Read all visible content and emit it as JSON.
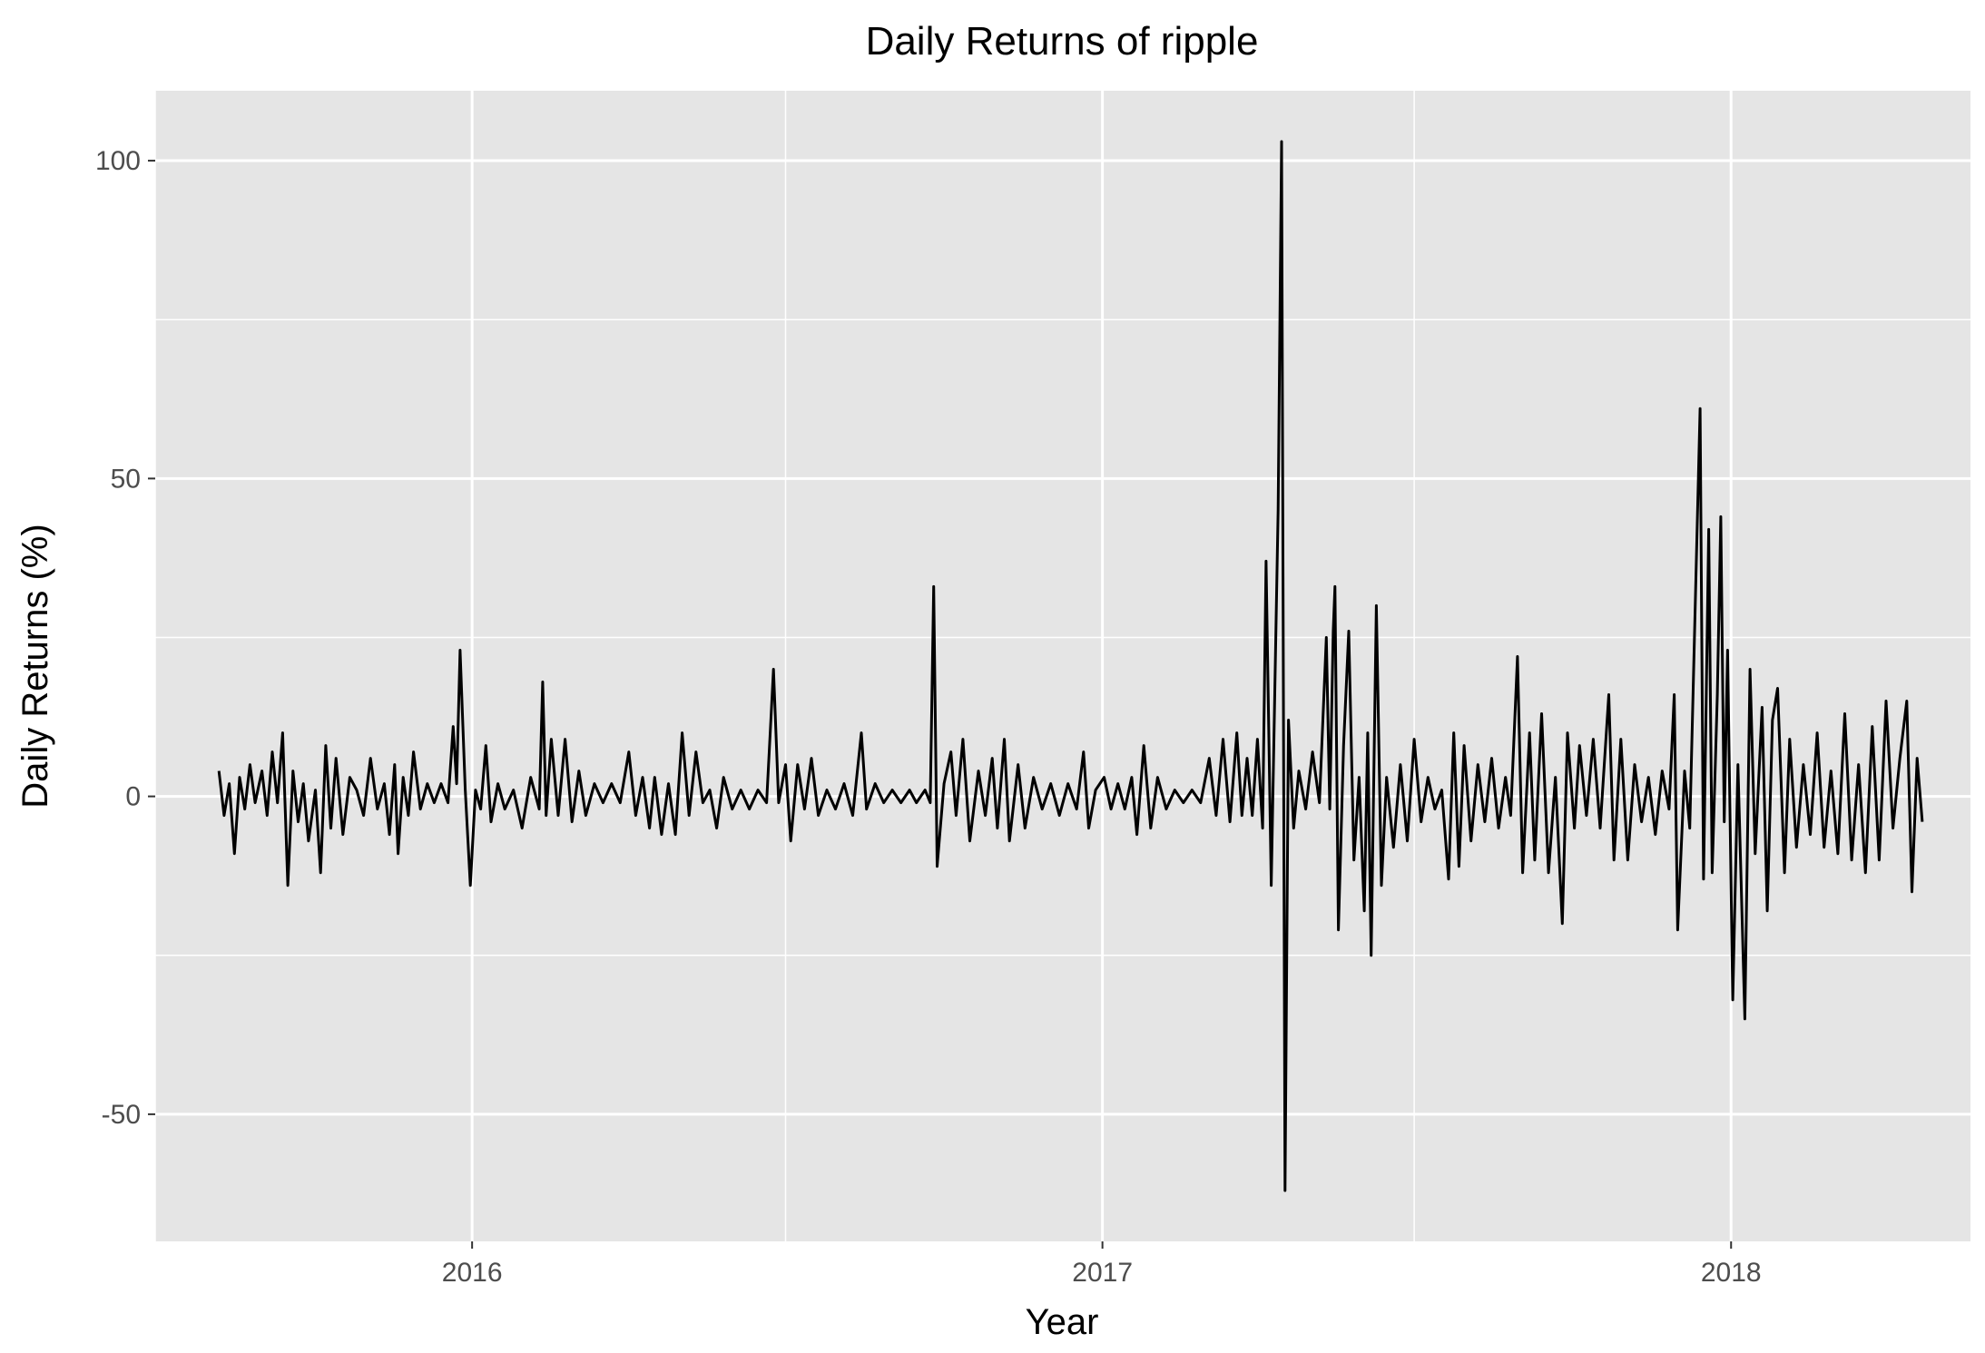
{
  "chart_data": {
    "type": "line",
    "title": "Daily Returns of ripple",
    "xlabel": "Year",
    "ylabel": "Daily Returns (%)",
    "x_ticks": [
      "2016",
      "2017",
      "2018"
    ],
    "y_ticks": [
      -50,
      0,
      50,
      100
    ],
    "ylim": [
      -70,
      111
    ],
    "xlim": [
      "2015-07-01",
      "2018-05-20"
    ],
    "grid": true,
    "background": "#e5e5e5",
    "grid_color": "#ffffff",
    "line_color": "#000000",
    "series": [
      {
        "points": [
          [
            "2015-08-07",
            4
          ],
          [
            "2015-08-10",
            -3
          ],
          [
            "2015-08-13",
            2
          ],
          [
            "2015-08-16",
            -9
          ],
          [
            "2015-08-19",
            3
          ],
          [
            "2015-08-22",
            -2
          ],
          [
            "2015-08-25",
            5
          ],
          [
            "2015-08-28",
            -1
          ],
          [
            "2015-09-01",
            4
          ],
          [
            "2015-09-04",
            -3
          ],
          [
            "2015-09-07",
            7
          ],
          [
            "2015-09-10",
            -1
          ],
          [
            "2015-09-13",
            10
          ],
          [
            "2015-09-16",
            -14
          ],
          [
            "2015-09-19",
            4
          ],
          [
            "2015-09-22",
            -4
          ],
          [
            "2015-09-25",
            2
          ],
          [
            "2015-09-28",
            -7
          ],
          [
            "2015-10-02",
            1
          ],
          [
            "2015-10-05",
            -12
          ],
          [
            "2015-10-08",
            8
          ],
          [
            "2015-10-11",
            -5
          ],
          [
            "2015-10-14",
            6
          ],
          [
            "2015-10-18",
            -6
          ],
          [
            "2015-10-22",
            3
          ],
          [
            "2015-10-26",
            1
          ],
          [
            "2015-10-30",
            -3
          ],
          [
            "2015-11-03",
            6
          ],
          [
            "2015-11-07",
            -2
          ],
          [
            "2015-11-11",
            2
          ],
          [
            "2015-11-14",
            -6
          ],
          [
            "2015-11-17",
            5
          ],
          [
            "2015-11-19",
            -9
          ],
          [
            "2015-11-22",
            3
          ],
          [
            "2015-11-25",
            -3
          ],
          [
            "2015-11-28",
            7
          ],
          [
            "2015-12-02",
            -2
          ],
          [
            "2015-12-06",
            2
          ],
          [
            "2015-12-10",
            -1
          ],
          [
            "2015-12-14",
            2
          ],
          [
            "2015-12-18",
            -1
          ],
          [
            "2015-12-21",
            11
          ],
          [
            "2015-12-23",
            2
          ],
          [
            "2015-12-25",
            23
          ],
          [
            "2015-12-28",
            1
          ],
          [
            "2015-12-31",
            -14
          ],
          [
            "2016-01-03",
            1
          ],
          [
            "2016-01-06",
            -2
          ],
          [
            "2016-01-09",
            8
          ],
          [
            "2016-01-12",
            -4
          ],
          [
            "2016-01-16",
            2
          ],
          [
            "2016-01-20",
            -2
          ],
          [
            "2016-01-25",
            1
          ],
          [
            "2016-01-30",
            -5
          ],
          [
            "2016-02-04",
            3
          ],
          [
            "2016-02-09",
            -2
          ],
          [
            "2016-02-11",
            18
          ],
          [
            "2016-02-13",
            -3
          ],
          [
            "2016-02-16",
            9
          ],
          [
            "2016-02-20",
            -3
          ],
          [
            "2016-02-24",
            9
          ],
          [
            "2016-02-28",
            -4
          ],
          [
            "2016-03-03",
            4
          ],
          [
            "2016-03-07",
            -3
          ],
          [
            "2016-03-12",
            2
          ],
          [
            "2016-03-17",
            -1
          ],
          [
            "2016-03-22",
            2
          ],
          [
            "2016-03-27",
            -1
          ],
          [
            "2016-04-01",
            7
          ],
          [
            "2016-04-05",
            -3
          ],
          [
            "2016-04-09",
            3
          ],
          [
            "2016-04-13",
            -5
          ],
          [
            "2016-04-16",
            3
          ],
          [
            "2016-04-20",
            -6
          ],
          [
            "2016-04-24",
            2
          ],
          [
            "2016-04-28",
            -6
          ],
          [
            "2016-05-02",
            10
          ],
          [
            "2016-05-06",
            -3
          ],
          [
            "2016-05-10",
            7
          ],
          [
            "2016-05-14",
            -1
          ],
          [
            "2016-05-18",
            1
          ],
          [
            "2016-05-22",
            -5
          ],
          [
            "2016-05-26",
            3
          ],
          [
            "2016-05-31",
            -2
          ],
          [
            "2016-06-05",
            1
          ],
          [
            "2016-06-10",
            -2
          ],
          [
            "2016-06-15",
            1
          ],
          [
            "2016-06-20",
            -1
          ],
          [
            "2016-06-24",
            20
          ],
          [
            "2016-06-27",
            -1
          ],
          [
            "2016-07-01",
            5
          ],
          [
            "2016-07-04",
            -7
          ],
          [
            "2016-07-08",
            5
          ],
          [
            "2016-07-12",
            -2
          ],
          [
            "2016-07-16",
            6
          ],
          [
            "2016-07-20",
            -3
          ],
          [
            "2016-07-25",
            1
          ],
          [
            "2016-07-30",
            -2
          ],
          [
            "2016-08-04",
            2
          ],
          [
            "2016-08-09",
            -3
          ],
          [
            "2016-08-14",
            10
          ],
          [
            "2016-08-17",
            -2
          ],
          [
            "2016-08-22",
            2
          ],
          [
            "2016-08-27",
            -1
          ],
          [
            "2016-09-01",
            1
          ],
          [
            "2016-09-06",
            -1
          ],
          [
            "2016-09-11",
            1
          ],
          [
            "2016-09-15",
            -1
          ],
          [
            "2016-09-20",
            1
          ],
          [
            "2016-09-23",
            -1
          ],
          [
            "2016-09-25",
            33
          ],
          [
            "2016-09-27",
            -11
          ],
          [
            "2016-10-01",
            2
          ],
          [
            "2016-10-05",
            7
          ],
          [
            "2016-10-08",
            -3
          ],
          [
            "2016-10-12",
            9
          ],
          [
            "2016-10-16",
            -7
          ],
          [
            "2016-10-21",
            4
          ],
          [
            "2016-10-25",
            -3
          ],
          [
            "2016-10-29",
            6
          ],
          [
            "2016-11-01",
            -5
          ],
          [
            "2016-11-05",
            9
          ],
          [
            "2016-11-08",
            -7
          ],
          [
            "2016-11-13",
            5
          ],
          [
            "2016-11-17",
            -5
          ],
          [
            "2016-11-22",
            3
          ],
          [
            "2016-11-27",
            -2
          ],
          [
            "2016-12-02",
            2
          ],
          [
            "2016-12-07",
            -3
          ],
          [
            "2016-12-12",
            2
          ],
          [
            "2016-12-17",
            -2
          ],
          [
            "2016-12-21",
            7
          ],
          [
            "2016-12-24",
            -5
          ],
          [
            "2016-12-28",
            1
          ],
          [
            "2017-01-02",
            3
          ],
          [
            "2017-01-06",
            -2
          ],
          [
            "2017-01-10",
            2
          ],
          [
            "2017-01-14",
            -2
          ],
          [
            "2017-01-18",
            3
          ],
          [
            "2017-01-21",
            -6
          ],
          [
            "2017-01-25",
            8
          ],
          [
            "2017-01-29",
            -5
          ],
          [
            "2017-02-02",
            3
          ],
          [
            "2017-02-07",
            -2
          ],
          [
            "2017-02-12",
            1
          ],
          [
            "2017-02-17",
            -1
          ],
          [
            "2017-02-22",
            1
          ],
          [
            "2017-02-27",
            -1
          ],
          [
            "2017-03-04",
            6
          ],
          [
            "2017-03-08",
            -3
          ],
          [
            "2017-03-12",
            9
          ],
          [
            "2017-03-16",
            -4
          ],
          [
            "2017-03-20",
            10
          ],
          [
            "2017-03-23",
            -3
          ],
          [
            "2017-03-26",
            6
          ],
          [
            "2017-03-29",
            -3
          ],
          [
            "2017-04-01",
            9
          ],
          [
            "2017-04-04",
            -5
          ],
          [
            "2017-04-06",
            37
          ],
          [
            "2017-04-09",
            -14
          ],
          [
            "2017-04-13",
            45
          ],
          [
            "2017-04-15",
            103
          ],
          [
            "2017-04-17",
            -62
          ],
          [
            "2017-04-19",
            12
          ],
          [
            "2017-04-22",
            -5
          ],
          [
            "2017-04-25",
            4
          ],
          [
            "2017-04-29",
            -2
          ],
          [
            "2017-05-03",
            7
          ],
          [
            "2017-05-07",
            -1
          ],
          [
            "2017-05-11",
            25
          ],
          [
            "2017-05-13",
            -2
          ],
          [
            "2017-05-15",
            26
          ],
          [
            "2017-05-16",
            33
          ],
          [
            "2017-05-18",
            -21
          ],
          [
            "2017-05-21",
            8
          ],
          [
            "2017-05-24",
            26
          ],
          [
            "2017-05-27",
            -10
          ],
          [
            "2017-05-30",
            3
          ],
          [
            "2017-06-02",
            -18
          ],
          [
            "2017-06-04",
            10
          ],
          [
            "2017-06-06",
            -25
          ],
          [
            "2017-06-09",
            30
          ],
          [
            "2017-06-12",
            -14
          ],
          [
            "2017-06-15",
            3
          ],
          [
            "2017-06-19",
            -8
          ],
          [
            "2017-06-23",
            5
          ],
          [
            "2017-06-27",
            -7
          ],
          [
            "2017-07-01",
            9
          ],
          [
            "2017-07-05",
            -4
          ],
          [
            "2017-07-09",
            3
          ],
          [
            "2017-07-13",
            -2
          ],
          [
            "2017-07-17",
            1
          ],
          [
            "2017-07-21",
            -13
          ],
          [
            "2017-07-24",
            10
          ],
          [
            "2017-07-27",
            -11
          ],
          [
            "2017-07-30",
            8
          ],
          [
            "2017-08-03",
            -7
          ],
          [
            "2017-08-07",
            5
          ],
          [
            "2017-08-11",
            -4
          ],
          [
            "2017-08-15",
            6
          ],
          [
            "2017-08-19",
            -5
          ],
          [
            "2017-08-23",
            3
          ],
          [
            "2017-08-26",
            -3
          ],
          [
            "2017-08-30",
            22
          ],
          [
            "2017-09-02",
            -12
          ],
          [
            "2017-09-06",
            10
          ],
          [
            "2017-09-09",
            -10
          ],
          [
            "2017-09-13",
            13
          ],
          [
            "2017-09-17",
            -12
          ],
          [
            "2017-09-21",
            3
          ],
          [
            "2017-09-25",
            -20
          ],
          [
            "2017-09-28",
            10
          ],
          [
            "2017-10-02",
            -5
          ],
          [
            "2017-10-05",
            8
          ],
          [
            "2017-10-09",
            -3
          ],
          [
            "2017-10-13",
            9
          ],
          [
            "2017-10-17",
            -5
          ],
          [
            "2017-10-22",
            16
          ],
          [
            "2017-10-25",
            -10
          ],
          [
            "2017-10-29",
            9
          ],
          [
            "2017-11-02",
            -10
          ],
          [
            "2017-11-06",
            5
          ],
          [
            "2017-11-10",
            -4
          ],
          [
            "2017-11-14",
            3
          ],
          [
            "2017-11-18",
            -6
          ],
          [
            "2017-11-22",
            4
          ],
          [
            "2017-11-26",
            -2
          ],
          [
            "2017-11-29",
            16
          ],
          [
            "2017-12-01",
            -21
          ],
          [
            "2017-12-05",
            4
          ],
          [
            "2017-12-08",
            -5
          ],
          [
            "2017-12-12",
            39
          ],
          [
            "2017-12-14",
            61
          ],
          [
            "2017-12-16",
            -13
          ],
          [
            "2017-12-19",
            42
          ],
          [
            "2017-12-21",
            -12
          ],
          [
            "2017-12-24",
            16
          ],
          [
            "2017-12-26",
            44
          ],
          [
            "2017-12-28",
            -4
          ],
          [
            "2017-12-30",
            23
          ],
          [
            "2018-01-02",
            -32
          ],
          [
            "2018-01-05",
            5
          ],
          [
            "2018-01-09",
            -35
          ],
          [
            "2018-01-12",
            20
          ],
          [
            "2018-01-15",
            -9
          ],
          [
            "2018-01-19",
            14
          ],
          [
            "2018-01-22",
            -18
          ],
          [
            "2018-01-25",
            12
          ],
          [
            "2018-01-28",
            17
          ],
          [
            "2018-02-01",
            -12
          ],
          [
            "2018-02-04",
            9
          ],
          [
            "2018-02-08",
            -8
          ],
          [
            "2018-02-12",
            5
          ],
          [
            "2018-02-16",
            -6
          ],
          [
            "2018-02-20",
            10
          ],
          [
            "2018-02-24",
            -8
          ],
          [
            "2018-02-28",
            4
          ],
          [
            "2018-03-04",
            -9
          ],
          [
            "2018-03-08",
            13
          ],
          [
            "2018-03-12",
            -10
          ],
          [
            "2018-03-16",
            5
          ],
          [
            "2018-03-20",
            -12
          ],
          [
            "2018-03-24",
            11
          ],
          [
            "2018-03-28",
            -10
          ],
          [
            "2018-04-01",
            15
          ],
          [
            "2018-04-05",
            -5
          ],
          [
            "2018-04-09",
            6
          ],
          [
            "2018-04-13",
            15
          ],
          [
            "2018-04-16",
            -15
          ],
          [
            "2018-04-19",
            6
          ],
          [
            "2018-04-22",
            -4
          ]
        ]
      }
    ]
  }
}
